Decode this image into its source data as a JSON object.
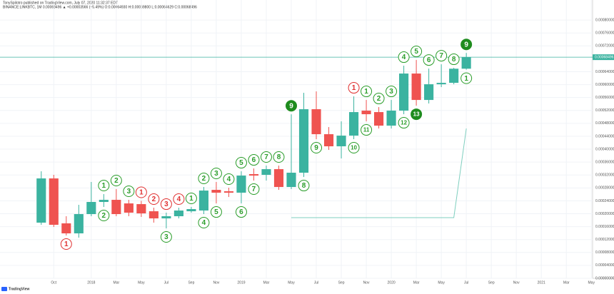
{
  "header": {
    "published": "TonySpilotro published on TradingView.com, July 07, 2020 11:32:37 EDT",
    "symbol": "BINANCE:LINKBTC, 1M 0.00068496 ▲ +0.00003566 (+5.49%) O:0.00064930 H:0.00069800 L:0.00064629 C:0.00068496"
  },
  "footer": {
    "logo": "TradingView"
  },
  "chart_data": {
    "type": "candlestick",
    "up_color": "#3bb3a0",
    "down_color": "#ef5350",
    "grid": true,
    "x": [
      0,
      1,
      2,
      3,
      4,
      5,
      6,
      7,
      8,
      9,
      10,
      11,
      12,
      13,
      14,
      15,
      16,
      17,
      18,
      19,
      20,
      21,
      22,
      23,
      24,
      25,
      26,
      27,
      28,
      29,
      30,
      31,
      32,
      33,
      34
    ],
    "open": [
      0.0001724,
      0.0003094,
      0.0001702,
      0.0001392,
      0.0001989,
      0.0002365,
      0.0002431,
      0.000232,
      0.0002298,
      0.0002077,
      0.0001856,
      0.0001923,
      0.0002077,
      0.00021,
      0.000274,
      0.0002696,
      0.0002652,
      0.0003227,
      0.0003205,
      0.0003381,
      0.0002829,
      0.0003271,
      0.0005238,
      0.0004464,
      0.0004089,
      0.000442,
      0.0005194,
      0.0005149,
      0.0004729,
      0.0005194,
      0.0006343,
      0.0005525,
      0.0006011,
      0.0006055,
      0.0006493
    ],
    "high": [
      0.0003315,
      0.0003205,
      0.0001923,
      0.0002276,
      0.0002984,
      0.0002608,
      0.0002763,
      0.0002431,
      0.0002398,
      0.0002188,
      0.0002033,
      0.0002188,
      0.000221,
      0.0002829,
      0.0002984,
      0.0002807,
      0.0003315,
      0.0003403,
      0.0003492,
      0.0003492,
      0.000508,
      0.0005746,
      0.000579,
      0.0004685,
      0.0004862,
      0.0005636,
      0.0005525,
      0.0005304,
      0.0005525,
      0.0006586,
      0.0006763,
      0.0006497,
      0.000663,
      0.000652,
      0.000698
    ],
    "low": [
      0.0001658,
      0.0001591,
      0.0001326,
      0.000126,
      0.0001923,
      0.000221,
      0.0001923,
      0.0001923,
      0.0001901,
      0.0001724,
      0.0001547,
      0.0001856,
      0.0002033,
      0.0001989,
      0.000232,
      0.0002519,
      0.000232,
      0.0003028,
      0.0003028,
      0.000274,
      0.0002763,
      0.0003138,
      0.000431,
      0.0003978,
      0.0003713,
      0.000431,
      0.0004862,
      0.0004641,
      0.0004641,
      0.0005083,
      0.0005348,
      0.0005415,
      0.0005923,
      0.0006011,
      0.00064629
    ],
    "close": [
      0.0003094,
      0.0001658,
      0.0001392,
      0.0001989,
      0.0002365,
      0.0002431,
      0.0001989,
      0.0002033,
      0.0002011,
      0.0001856,
      0.0001923,
      0.00021,
      0.0002144,
      0.0002718,
      0.0002652,
      0.0002652,
      0.0003182,
      0.0003182,
      0.0003381,
      0.0002829,
      0.0003271,
      0.0005238,
      0.0004464,
      0.0004089,
      0.000442,
      0.0005149,
      0.0005083,
      0.0004729,
      0.0005194,
      0.0006343,
      0.0005525,
      0.0006011,
      0.0006055,
      0.0006493,
      0.00068496
    ],
    "xlim": [
      -3.3,
      44.1
    ],
    "xticks": [
      {
        "value": 1,
        "label": "Oct"
      },
      {
        "value": 4,
        "label": "2018"
      },
      {
        "value": 6,
        "label": "Mar"
      },
      {
        "value": 8,
        "label": "May"
      },
      {
        "value": 10,
        "label": "Jul"
      },
      {
        "value": 12,
        "label": "Sep"
      },
      {
        "value": 14,
        "label": "Nov"
      },
      {
        "value": 16,
        "label": "2019"
      },
      {
        "value": 18,
        "label": "Mar"
      },
      {
        "value": 20,
        "label": "May"
      },
      {
        "value": 22,
        "label": "Jul"
      },
      {
        "value": 24,
        "label": "Sep"
      },
      {
        "value": 26,
        "label": "Nov"
      },
      {
        "value": 28,
        "label": "2020"
      },
      {
        "value": 30,
        "label": "Mar"
      },
      {
        "value": 32,
        "label": "May"
      },
      {
        "value": 34,
        "label": "Jul"
      },
      {
        "value": 36,
        "label": "Sep"
      },
      {
        "value": 38,
        "label": "Nov"
      },
      {
        "value": 40,
        "label": "2021"
      },
      {
        "value": 42,
        "label": "Mar"
      },
      {
        "value": 44,
        "label": "May"
      }
    ],
    "ylim": [
      0,
      0.00084
    ],
    "yticks": [
      {
        "value": 0,
        "label": "0.00000000"
      },
      {
        "value": 4e-05,
        "label": "0.00004000"
      },
      {
        "value": 8e-05,
        "label": "0.00008000"
      },
      {
        "value": 0.00012,
        "label": "0.00012000"
      },
      {
        "value": 0.00016,
        "label": "0.00016000"
      },
      {
        "value": 0.0002,
        "label": "0.00020000"
      },
      {
        "value": 0.00024,
        "label": "0.00024000"
      },
      {
        "value": 0.00028,
        "label": "0.00028000"
      },
      {
        "value": 0.00032,
        "label": "0.00032000"
      },
      {
        "value": 0.00036,
        "label": "0.00036000"
      },
      {
        "value": 0.0004,
        "label": "0.00040000"
      },
      {
        "value": 0.00044,
        "label": "0.00044000"
      },
      {
        "value": 0.00048,
        "label": "0.00048000"
      },
      {
        "value": 0.00052,
        "label": "0.00052000"
      },
      {
        "value": 0.00056,
        "label": "0.00056000"
      },
      {
        "value": 0.0006,
        "label": "0.00060000"
      },
      {
        "value": 0.00064,
        "label": "0.00064000"
      },
      {
        "value": 0.00072,
        "label": "0.00072000"
      },
      {
        "value": 0.00076,
        "label": "0.00076000"
      },
      {
        "value": 0.0008,
        "label": "0.00080000"
      }
    ],
    "last_price": {
      "value": 0.00068496,
      "label": "0.00068496",
      "color": "#3bb3a0"
    },
    "lines": [
      {
        "color": "#7fcfbf",
        "x": [
          20,
          33,
          34
        ],
        "values": [
          0.000188,
          0.000188,
          0.000464
        ]
      }
    ],
    "annotations": [
      {
        "candle": 2,
        "label": "1",
        "color": "#e03030",
        "side": "below",
        "filled": false
      },
      {
        "candle": 5,
        "label": "1",
        "color": "#2a9d2a",
        "side": "above",
        "filled": false
      },
      {
        "candle": 5,
        "label": "2",
        "color": "#2a9d2a",
        "side": "below",
        "filled": false
      },
      {
        "candle": 6,
        "label": "2",
        "color": "#2a9d2a",
        "side": "above",
        "filled": false
      },
      {
        "candle": 7,
        "label": "3",
        "color": "#2a9d2a",
        "side": "above",
        "filled": false
      },
      {
        "candle": 8,
        "label": "1",
        "color": "#e03030",
        "side": "above",
        "filled": false
      },
      {
        "candle": 9,
        "label": "2",
        "color": "#e03030",
        "side": "above",
        "filled": false
      },
      {
        "candle": 10,
        "label": "3",
        "color": "#e03030",
        "side": "above",
        "filled": false
      },
      {
        "candle": 10,
        "label": "3",
        "color": "#2a9d2a",
        "side": "below",
        "filled": false
      },
      {
        "candle": 11,
        "label": "4",
        "color": "#e03030",
        "side": "above",
        "filled": false
      },
      {
        "candle": 12,
        "label": "1",
        "color": "#2a9d2a",
        "side": "above",
        "filled": false
      },
      {
        "candle": 13,
        "label": "2",
        "color": "#2a9d2a",
        "side": "above",
        "filled": false
      },
      {
        "candle": 13,
        "label": "4",
        "color": "#2a9d2a",
        "side": "below",
        "filled": false
      },
      {
        "candle": 14,
        "label": "3",
        "color": "#2a9d2a",
        "side": "above",
        "filled": false
      },
      {
        "candle": 14,
        "label": "5",
        "color": "#2a9d2a",
        "side": "below",
        "filled": false
      },
      {
        "candle": 15,
        "label": "4",
        "color": "#2a9d2a",
        "side": "above",
        "filled": false
      },
      {
        "candle": 16,
        "label": "5",
        "color": "#2a9d2a",
        "side": "above",
        "filled": false
      },
      {
        "candle": 16,
        "label": "6",
        "color": "#2a9d2a",
        "side": "below",
        "filled": false
      },
      {
        "candle": 17,
        "label": "6",
        "color": "#2a9d2a",
        "side": "above",
        "filled": false
      },
      {
        "candle": 17,
        "label": "7",
        "color": "#2a9d2a",
        "side": "below",
        "filled": false
      },
      {
        "candle": 18,
        "label": "7",
        "color": "#2a9d2a",
        "side": "above",
        "filled": false
      },
      {
        "candle": 19,
        "label": "8",
        "color": "#2a9d2a",
        "side": "above",
        "filled": false
      },
      {
        "candle": 20,
        "label": "9",
        "color": "#1e8c1e",
        "side": "above",
        "filled": true
      },
      {
        "candle": 21,
        "label": "8",
        "color": "#2a9d2a",
        "side": "below",
        "filled": false
      },
      {
        "candle": 22,
        "label": "9",
        "color": "#2a9d2a",
        "side": "below",
        "filled": false
      },
      {
        "candle": 25,
        "label": "1",
        "color": "#e03030",
        "side": "above",
        "filled": false
      },
      {
        "candle": 25,
        "label": "10",
        "color": "#2a9d2a",
        "side": "below",
        "filled": false
      },
      {
        "candle": 26,
        "label": "1",
        "color": "#2a9d2a",
        "side": "above",
        "filled": false
      },
      {
        "candle": 26,
        "label": "11",
        "color": "#2a9d2a",
        "side": "below",
        "filled": false
      },
      {
        "candle": 27,
        "label": "2",
        "color": "#2a9d2a",
        "side": "above",
        "filled": false
      },
      {
        "candle": 28,
        "label": "3",
        "color": "#2a9d2a",
        "side": "above",
        "filled": false
      },
      {
        "candle": 29,
        "label": "4",
        "color": "#2a9d2a",
        "side": "above",
        "filled": false
      },
      {
        "candle": 29,
        "label": "12",
        "color": "#2a9d2a",
        "side": "below",
        "filled": false
      },
      {
        "candle": 30,
        "label": "5",
        "color": "#2a9d2a",
        "side": "above",
        "filled": false
      },
      {
        "candle": 30,
        "label": "13",
        "color": "#1e8c1e",
        "side": "below",
        "filled": true
      },
      {
        "candle": 31,
        "label": "6",
        "color": "#2a9d2a",
        "side": "above",
        "filled": false
      },
      {
        "candle": 32,
        "label": "7",
        "color": "#2a9d2a",
        "side": "above",
        "filled": false
      },
      {
        "candle": 33,
        "label": "8",
        "color": "#2a9d2a",
        "side": "above",
        "filled": false
      },
      {
        "candle": 34,
        "label": "9",
        "color": "#1e8c1e",
        "side": "above",
        "filled": true
      },
      {
        "candle": 34,
        "label": "1",
        "color": "#2a9d2a",
        "side": "below",
        "filled": false
      }
    ]
  }
}
